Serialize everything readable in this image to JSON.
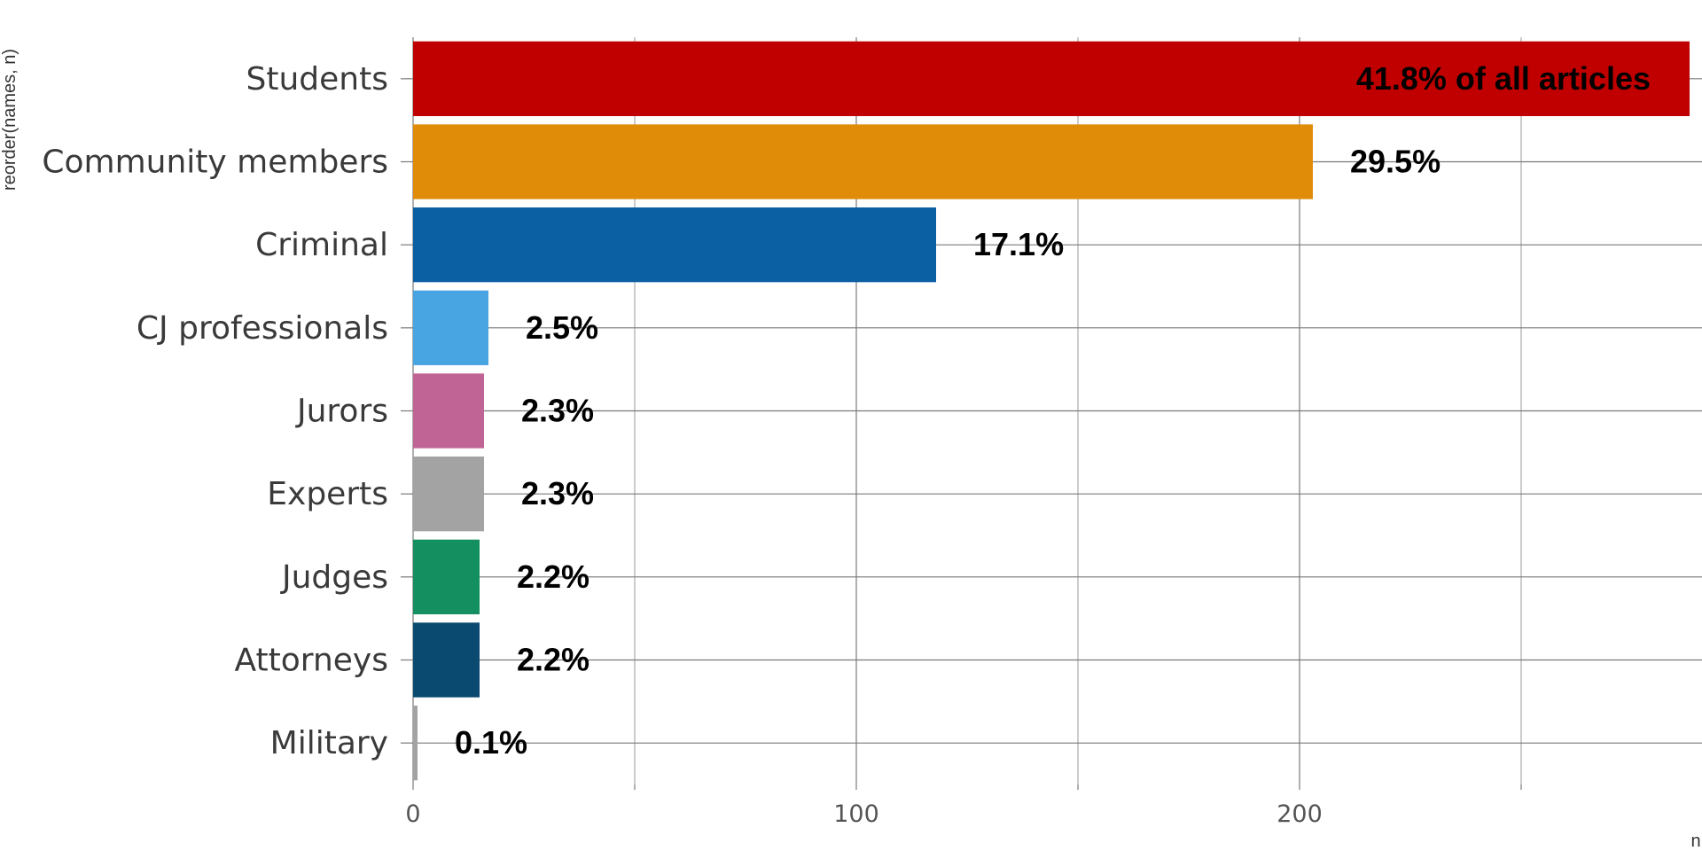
{
  "chart_data": {
    "type": "bar",
    "orientation": "horizontal",
    "categories": [
      "Students",
      "Community members",
      "Criminal",
      "CJ professionals",
      "Jurors",
      "Experts",
      "Judges",
      "Attorneys",
      "Military"
    ],
    "values": [
      288,
      203,
      118,
      17,
      16,
      16,
      15,
      15,
      1
    ],
    "labels": [
      "41.8% of all articles",
      "29.5%",
      "17.1%",
      "2.5%",
      "2.3%",
      "2.3%",
      "2.2%",
      "2.2%",
      "0.1%"
    ],
    "colors": [
      "#C00000",
      "#E08C08",
      "#0B5FA3",
      "#49A4E2",
      "#C06496",
      "#A3A3A3",
      "#148F5F",
      "#0A4A70",
      "#A3A3A3"
    ],
    "xlabel": "n",
    "ylabel": "reorder(names, n)",
    "xlim": [
      0,
      290
    ],
    "xticks": [
      0,
      100,
      200
    ],
    "xticks_minor": [
      50,
      150,
      250
    ],
    "grid": true,
    "legend": "none"
  }
}
